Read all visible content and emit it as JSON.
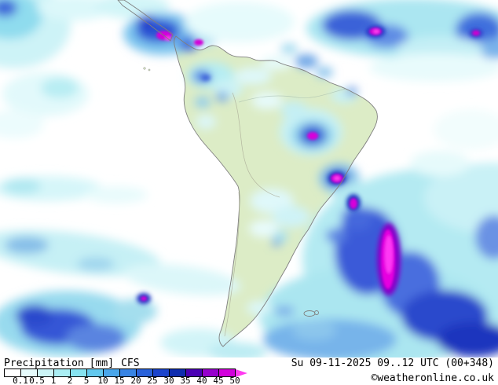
{
  "map": {
    "region": "South America",
    "land_color": "#dcecc6",
    "ocean_color": "#ffffff",
    "coastline_color": "#7f7f7f",
    "heavy_precip_color": "#d800da",
    "light_precip_color": "#ccf5f7"
  },
  "legend": {
    "title": "Precipitation",
    "unit": "[mm]",
    "model": "CFS",
    "datetime": "Su 09-11-2025 09..12 UTC (00+348)",
    "copyright": "©weatheronline.co.uk",
    "scale": {
      "ticks": [
        "0.1",
        "0.5",
        "1",
        "2",
        "5",
        "10",
        "15",
        "20",
        "25",
        "30",
        "35",
        "40",
        "45",
        "50"
      ],
      "colors": [
        "#ffffff",
        "#e6fbfc",
        "#ccf5f7",
        "#aaeef4",
        "#86e2f0",
        "#62c8ee",
        "#4aa6ea",
        "#3884e4",
        "#2a62da",
        "#1c44cc",
        "#0e2cae",
        "#4a00b4",
        "#9600cc",
        "#d200dc"
      ],
      "arrow_color": "#ff3cf0"
    }
  }
}
